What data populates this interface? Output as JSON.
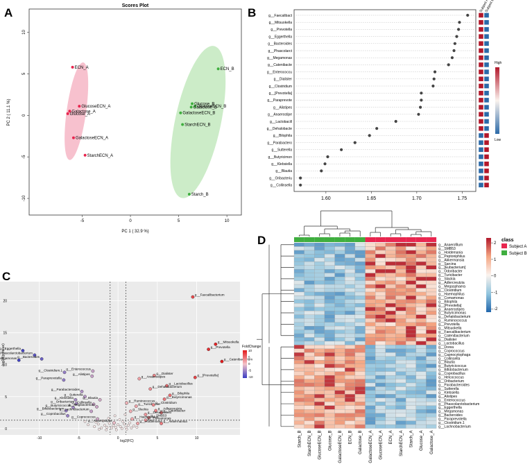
{
  "panels": {
    "a": "A",
    "b": "B",
    "c": "C",
    "d": "D"
  },
  "colors": {
    "subject_a": "#e8264f",
    "subject_b": "#3fae3f",
    "ellipse_a": "#f4a7b9",
    "ellipse_b": "#b7e4b0",
    "heat_low": "#2c6aa8",
    "heat_mid": "#fbf3ee",
    "heat_high": "#b2182b",
    "volcano_low": "#3a3dc4",
    "volcano_high": "#e31a1c"
  },
  "chart_data": [
    {
      "id": "scores",
      "type": "scatter",
      "title": "Scores Plot",
      "xlabel": "PC 1 ( 32.9 %)",
      "ylabel": "PC 2 ( 11.1 %)",
      "xlim": [
        -10.5,
        11.5
      ],
      "ylim": [
        -12,
        12.8
      ],
      "xticks": [
        -5,
        0,
        5,
        10
      ],
      "yticks": [
        -10,
        -5,
        0,
        5,
        10
      ],
      "series": [
        {
          "name": "Subject A",
          "points": [
            {
              "label": "ECN_A",
              "x": -6,
              "y": 5.8
            },
            {
              "label": "GlucoseECN_A",
              "x": -5.3,
              "y": 1.1
            },
            {
              "label": "Galactose_A",
              "x": -6.3,
              "y": 0.5
            },
            {
              "label": "Glucose_A",
              "x": -6.5,
              "y": 0.2
            },
            {
              "label": "GalactoseECN_A",
              "x": -5.9,
              "y": -2.7
            },
            {
              "label": "StarchECN_A",
              "x": -4.7,
              "y": -4.8
            }
          ]
        },
        {
          "name": "Subject B",
          "points": [
            {
              "label": "ECN_B",
              "x": 9.1,
              "y": 5.6
            },
            {
              "label": "Glucose_B",
              "x": 6.4,
              "y": 1.4
            },
            {
              "label": "GlucoseECN_B",
              "x": 6.7,
              "y": 1.1
            },
            {
              "label": "Galactose_B",
              "x": 6.3,
              "y": 1.0
            },
            {
              "label": "GalactoseECN_B",
              "x": 5.2,
              "y": 0.3
            },
            {
              "label": "StarchECN_B",
              "x": 5.4,
              "y": -1.1
            },
            {
              "label": "Starch_B",
              "x": 6.1,
              "y": -9.5
            }
          ]
        }
      ]
    },
    {
      "id": "importance",
      "type": "scatter",
      "xlabel": "",
      "xlim": [
        1.565,
        1.765
      ],
      "xticks": [
        1.6,
        1.65,
        1.7,
        1.75
      ],
      "taxa": [
        "g__Faecalibact",
        "g__Mitsuokella",
        "g__Prevotella",
        "g__Eggerthella",
        "g__Bacteroides",
        "g__Phascolarct",
        "g__Megamonas",
        "g__Catenibacte",
        "g__Enterococcu",
        "g__Dialister",
        "g__Clostridium",
        "g__[Prevotella]",
        "g__Paraprevote",
        "g__Alistipes",
        "g__Anaerostipe",
        "g__Lactobacill",
        "g__Dehalobacte",
        "g__Bilophila",
        "g__Parabactero",
        "g__Sutterella",
        "g__Butyricimon",
        "g__Klebsiella",
        "g__Blautia",
        "g__Oribacteriu",
        "g__Collinsella"
      ],
      "values": [
        1.756,
        1.747,
        1.746,
        1.744,
        1.742,
        1.741,
        1.739,
        1.735,
        1.72,
        1.719,
        1.718,
        1.705,
        1.705,
        1.704,
        1.702,
        1.677,
        1.656,
        1.648,
        1.632,
        1.617,
        1.602,
        1.599,
        1.595,
        1.572,
        1.572
      ],
      "legend_header": [
        "Subject A",
        "Subject B"
      ],
      "scale_labels": [
        "High",
        "Low"
      ]
    },
    {
      "id": "volcano",
      "type": "scatter",
      "xlabel": "log2(FC)",
      "ylabel": "-log10(p-value)",
      "xlim": [
        -15,
        15.5
      ],
      "ylim": [
        -1,
        23
      ],
      "xticks": [
        -10,
        -5,
        0,
        5,
        10
      ],
      "yticks": [
        0,
        5,
        10,
        15,
        20
      ],
      "legend_title": "FoldChange",
      "legend_ticks": [
        "10",
        "5",
        "0",
        "-5",
        "-10"
      ],
      "labeled_points": [
        {
          "label": "g__Faecalibacterium",
          "x": 9.5,
          "y": 20.6
        },
        {
          "label": "g__Mitsuokella",
          "x": 12.4,
          "y": 13.2
        },
        {
          "label": "g__Prevotella",
          "x": 11.5,
          "y": 12.4
        },
        {
          "label": "g__Catenibacterium",
          "x": 13.2,
          "y": 10.5
        },
        {
          "label": "g__Eggerthella",
          "x": -12.1,
          "y": 12.2
        },
        {
          "label": "g__Phascolarctobacterium",
          "x": -10.6,
          "y": 11.5
        },
        {
          "label": "g__Bacteroides",
          "x": -9.7,
          "y": 10.9
        },
        {
          "label": "g__Megamonas",
          "x": -12.6,
          "y": 10.7
        },
        {
          "label": "g__Clostridium.1",
          "x": -6.8,
          "y": 8.8
        },
        {
          "label": "g__Enterococcus",
          "x": -3.2,
          "y": 9.0
        },
        {
          "label": "g__Alistipes",
          "x": -3.3,
          "y": 8.2
        },
        {
          "label": "g__Paraprevotella",
          "x": -6.9,
          "y": 7.6
        },
        {
          "label": "g__Dialister",
          "x": 4.6,
          "y": 8.3
        },
        {
          "label": "g__Anaerostipes",
          "x": 2.7,
          "y": 7.8
        },
        {
          "label": "g__[Prevotella]",
          "x": 9.8,
          "y": 8.0
        },
        {
          "label": "g__Lactobacillus",
          "x": 6.2,
          "y": 6.7
        },
        {
          "label": "g__Dehalobacterium",
          "x": 4.1,
          "y": 6.2
        },
        {
          "label": "g__Bilophila",
          "x": 6.6,
          "y": 5.2
        },
        {
          "label": "g__Butyricimonas",
          "x": 5.9,
          "y": 4.6
        },
        {
          "label": "g__Parabacteroides",
          "x": -4.6,
          "y": 5.8
        },
        {
          "label": "g__Sutterella",
          "x": -4.2,
          "y": 5.0
        },
        {
          "label": "g__Klebsiella",
          "x": -5.4,
          "y": 4.5
        },
        {
          "label": "g__Blautia",
          "x": -2.3,
          "y": 4.5
        },
        {
          "label": "g__Oribacterium",
          "x": -5.3,
          "y": 3.9
        },
        {
          "label": "g__Collinsella",
          "x": -3.1,
          "y": 3.8
        },
        {
          "label": "g__Butyricicoccus",
          "x": -5.7,
          "y": 3.3
        },
        {
          "label": "g__Mogibacterium",
          "x": -2.7,
          "y": 3.4
        },
        {
          "label": "g__Bifidobacterium",
          "x": -6.6,
          "y": 2.8
        },
        {
          "label": "g__Lachnobacterium",
          "x": -3.4,
          "y": 2.7
        },
        {
          "label": "g__Coprobacillus",
          "x": -6.4,
          "y": 2.0
        },
        {
          "label": "g__Coprococcus",
          "x": -2.6,
          "y": 1.5
        },
        {
          "label": "g__Ruminococcus",
          "x": 1.1,
          "y": 4.0
        },
        {
          "label": "g__Turicibacter",
          "x": 2.3,
          "y": 3.5
        },
        {
          "label": "g__Clostridium",
          "x": 4.5,
          "y": 3.7
        },
        {
          "label": "g__Slackia",
          "x": 1.6,
          "y": 2.7
        },
        {
          "label": "g__Adlercreutzia",
          "x": 4.8,
          "y": 2.8
        },
        {
          "label": "g__Odoribacter",
          "x": 5.5,
          "y": 2.5
        },
        {
          "label": "g__Desulfovibrio",
          "x": 3.5,
          "y": 2.2
        },
        {
          "label": "g__SMB53",
          "x": 3.9,
          "y": 1.7
        },
        {
          "label": "g__Haemophilus",
          "x": 1.8,
          "y": 1.5
        },
        {
          "label": "g__Comamonas",
          "x": 3.5,
          "y": 1.3
        },
        {
          "label": "g__Anaerostipes",
          "x": -0.5,
          "y": 0.9
        },
        {
          "label": "g__Holdemania",
          "x": 2.5,
          "y": 0.8
        },
        {
          "label": "g__Akkermansia",
          "x": 5.5,
          "y": 0.8
        }
      ],
      "unlabeled_points": [
        [
          -3.8,
          0.6
        ],
        [
          -3.0,
          0.3
        ],
        [
          -2.5,
          0.7
        ],
        [
          -2.1,
          0.1
        ],
        [
          -1.7,
          0.5
        ],
        [
          -1.4,
          0.2
        ],
        [
          -1.1,
          0.8
        ],
        [
          -0.8,
          0.1
        ],
        [
          -0.6,
          0.5
        ],
        [
          -0.3,
          0.2
        ],
        [
          0.0,
          0.6
        ],
        [
          0.3,
          0.3
        ],
        [
          0.5,
          0.0
        ],
        [
          0.8,
          0.7
        ],
        [
          1.0,
          0.2
        ],
        [
          1.3,
          0.5
        ],
        [
          1.7,
          0.1
        ],
        [
          2.0,
          0.4
        ],
        [
          -2.8,
          1.0
        ],
        [
          -1.9,
          1.2
        ],
        [
          0.6,
          1.1
        ],
        [
          1.5,
          0.9
        ],
        [
          -4.2,
          1.1
        ],
        [
          -1.2,
          1.6
        ],
        [
          0.2,
          1.4
        ],
        [
          -0.4,
          2.0
        ],
        [
          0.9,
          2.2
        ],
        [
          -2.4,
          -0.1
        ],
        [
          -1.5,
          -0.2
        ],
        [
          -0.2,
          -0.2
        ],
        [
          1.1,
          -0.1
        ],
        [
          2.4,
          0.2
        ]
      ],
      "hlines": [
        1.3
      ],
      "vlines": [
        -1,
        1
      ]
    },
    {
      "id": "heatmap",
      "type": "heatmap",
      "legend_title": "class",
      "legend_entries": [
        "Subject A",
        "Subject B"
      ],
      "scale_ticks": [
        "2",
        "1",
        "0",
        "-1",
        "-2"
      ],
      "columns": [
        "Starch_B",
        "StarchECN_B",
        "GlucoseECN_B",
        "Glucose_B",
        "GalactoseECN_B",
        "ECN_B",
        "Galactose_B",
        "GalactoseECN_A",
        "GlucoseECN_A",
        "ECN_A",
        "StarchECN_A",
        "Starch_A",
        "Glucose_A",
        "Galactose_A"
      ],
      "column_class": [
        "B",
        "B",
        "B",
        "B",
        "B",
        "B",
        "B",
        "A",
        "A",
        "A",
        "A",
        "A",
        "A",
        "A"
      ],
      "rows": [
        "g__Anaerofilum",
        "g__SMB53",
        "g__Holdemania",
        "g__Peptoniphilus",
        "g__Akkermansia",
        "g__Sarcina",
        "g__[Eubacterium]",
        "g__Odoribacter",
        "g__Turicibacter",
        "g__Slackia",
        "g__Adlercreutzia",
        "g__Megasphaera",
        "g__Clostridium",
        "g__Haemophilus",
        "g__Comamonas",
        "g__Bilophila",
        "g__[Prevotella]",
        "g__Anaerostipes",
        "g__Butyricimonas",
        "g__Dehalobacterium",
        "g__Ruminococcus",
        "g__Prevotella",
        "g__Mitsuokella",
        "g__Faecalibacterium",
        "g__Catenibacterium",
        "g__Dialister",
        "g__Lactobacillus",
        "g__Dorea",
        "g__Coprococcus",
        "g__Capnocytophaga",
        "g__Collinsella",
        "g__Blautia",
        "g__Butyricicoccus",
        "g__Bifidobacterium",
        "g__Coprobacillus",
        "g__Helcococcus",
        "g__Oribacterium",
        "g__Parabacteroides",
        "g__Sutterella",
        "g__Klebsiella",
        "g__Alistipes",
        "g__Enterococcus",
        "g__Phascolarctobacterium",
        "g__Eggerthella",
        "g__Megamonas",
        "g__Bacteroides",
        "g__Paraprevotella",
        "g__Clostridium.1",
        "g__Lachnobacterium"
      ]
    }
  ]
}
